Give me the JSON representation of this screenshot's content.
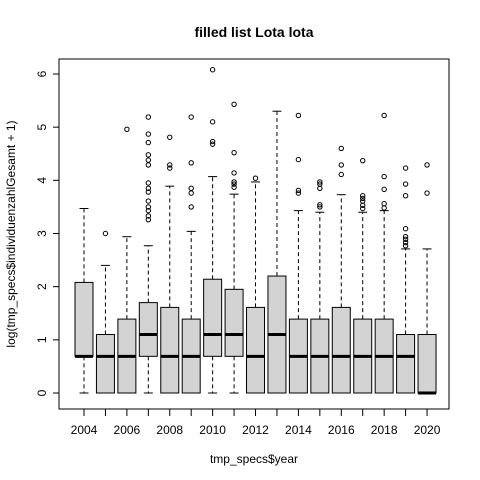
{
  "chart_data": {
    "type": "boxplot",
    "title": "filled list Lota lota",
    "xlabel": "tmp_specs$year",
    "ylabel": "log(tmp_specs$individuenzahlGesamt + 1)",
    "ylim": [
      0,
      6
    ],
    "yticks": [
      "0",
      "1",
      "2",
      "3",
      "4",
      "5",
      "6"
    ],
    "xtick_labels": [
      "2004",
      "2006",
      "2008",
      "2010",
      "2012",
      "2014",
      "2016",
      "2018",
      "2020"
    ],
    "box_fill": "#d3d3d3",
    "categories": [
      "2004",
      "2005",
      "2006",
      "2007",
      "2008",
      "2009",
      "2010",
      "2011",
      "2012",
      "2013",
      "2014",
      "2015",
      "2016",
      "2017",
      "2018",
      "2019",
      "2020"
    ],
    "boxes": [
      {
        "min": 0,
        "q1": 0.69,
        "median": 0.69,
        "q3": 2.08,
        "max": 3.47,
        "outliers": []
      },
      {
        "min": 0,
        "q1": 0,
        "median": 0.69,
        "q3": 1.1,
        "max": 2.4,
        "outliers": [
          3.0
        ]
      },
      {
        "min": 0,
        "q1": 0,
        "median": 0.69,
        "q3": 1.39,
        "max": 2.94,
        "outliers": [
          4.96
        ]
      },
      {
        "min": 0,
        "q1": 0.69,
        "median": 1.1,
        "q3": 1.7,
        "max": 2.77,
        "outliers": [
          3.26,
          3.33,
          3.43,
          3.5,
          3.61,
          3.78,
          3.85,
          3.95,
          4.29,
          4.38,
          4.48,
          4.71,
          4.87,
          5.19
        ]
      },
      {
        "min": 0,
        "q1": 0,
        "median": 0.69,
        "q3": 1.61,
        "max": 3.89,
        "outliers": [
          4.23,
          4.29,
          4.81
        ]
      },
      {
        "min": 0,
        "q1": 0,
        "median": 0.69,
        "q3": 1.39,
        "max": 3.04,
        "outliers": [
          3.5,
          3.76,
          3.85,
          4.33,
          5.19
        ]
      },
      {
        "min": 0,
        "q1": 0.69,
        "median": 1.1,
        "q3": 2.14,
        "max": 4.07,
        "outliers": [
          4.68,
          4.73,
          5.1,
          6.08
        ]
      },
      {
        "min": 0,
        "q1": 0.69,
        "median": 1.1,
        "q3": 1.95,
        "max": 3.74,
        "outliers": [
          3.87,
          3.93,
          3.97,
          4.14,
          4.52,
          5.43
        ]
      },
      {
        "min": 0,
        "q1": 0,
        "median": 0.69,
        "q3": 1.61,
        "max": 3.97,
        "outliers": [
          4.04
        ]
      },
      {
        "min": 0,
        "q1": 0,
        "median": 1.1,
        "q3": 2.2,
        "max": 5.3,
        "outliers": []
      },
      {
        "min": 0,
        "q1": 0,
        "median": 0.69,
        "q3": 1.39,
        "max": 3.43,
        "outliers": [
          3.76,
          3.81,
          4.39,
          5.22
        ]
      },
      {
        "min": 0,
        "q1": 0,
        "median": 0.69,
        "q3": 1.39,
        "max": 3.4,
        "outliers": [
          3.5,
          3.54,
          3.85,
          3.93,
          3.97
        ]
      },
      {
        "min": 0,
        "q1": 0,
        "median": 0.69,
        "q3": 1.61,
        "max": 3.73,
        "outliers": [
          4.11,
          4.29,
          4.6
        ]
      },
      {
        "min": 0,
        "q1": 0,
        "median": 0.69,
        "q3": 1.39,
        "max": 3.4,
        "outliers": [
          3.47,
          3.53,
          3.61,
          3.66,
          3.71,
          4.37
        ]
      },
      {
        "min": 0,
        "q1": 0,
        "median": 0.69,
        "q3": 1.39,
        "max": 3.43,
        "outliers": [
          3.48,
          3.56,
          3.83,
          4.07,
          5.22
        ]
      },
      {
        "min": 0,
        "q1": 0,
        "median": 0.69,
        "q3": 1.1,
        "max": 2.71,
        "outliers": [
          2.77,
          2.83,
          2.89,
          2.94,
          3.09,
          3.71,
          3.93,
          4.23
        ]
      },
      {
        "min": 0,
        "q1": 0,
        "median": 0,
        "q3": 1.1,
        "max": 2.71,
        "outliers": [
          3.76,
          4.29
        ]
      }
    ]
  }
}
